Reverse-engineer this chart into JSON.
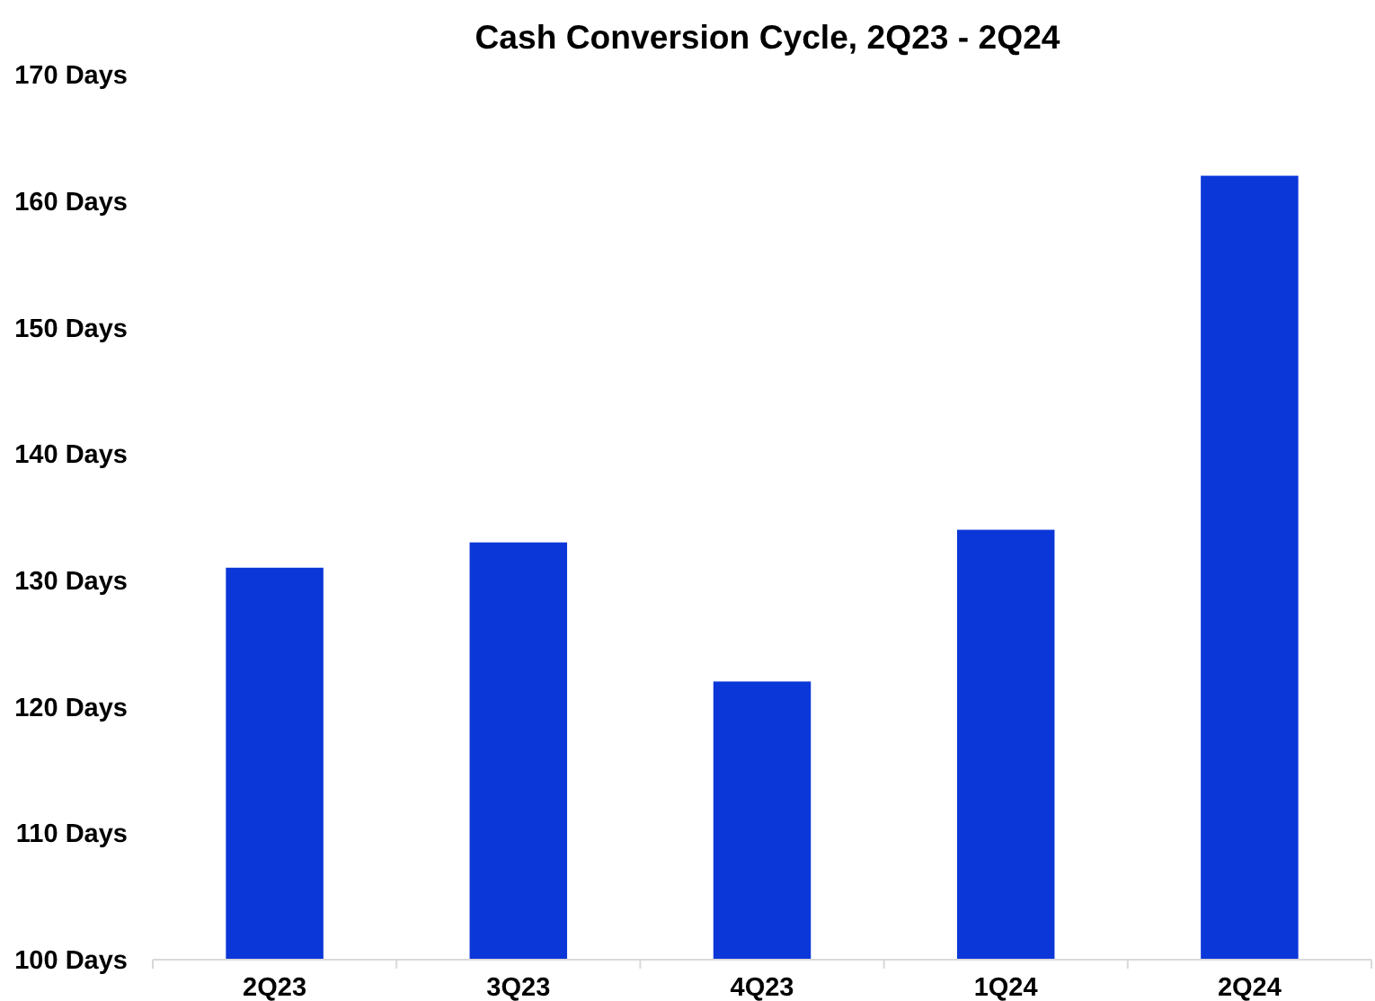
{
  "chart_data": {
    "type": "bar",
    "title": "Cash Conversion Cycle, 2Q23 - 2Q24",
    "categories": [
      "2Q23",
      "3Q23",
      "4Q23",
      "1Q24",
      "2Q24"
    ],
    "values": [
      131,
      133,
      122,
      134,
      162
    ],
    "color": "#0b37d9",
    "ylim": [
      100,
      170
    ],
    "yticks": [
      {
        "value": 100,
        "label": "100 Days"
      },
      {
        "value": 110,
        "label": "110 Days"
      },
      {
        "value": 120,
        "label": "120 Days"
      },
      {
        "value": 130,
        "label": "130 Days"
      },
      {
        "value": 140,
        "label": "140 Days"
      },
      {
        "value": 150,
        "label": "150 Days"
      },
      {
        "value": 160,
        "label": "160 Days"
      },
      {
        "value": 170,
        "label": "170 Days"
      }
    ]
  }
}
